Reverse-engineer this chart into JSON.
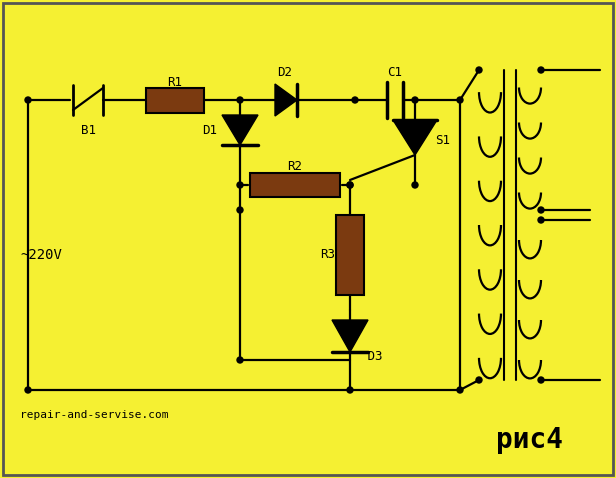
{
  "background_color": "#f5f032",
  "border_color": "#555555",
  "line_color": "#000000",
  "component_fill": "#7B3A10",
  "diode_fill": "#000000",
  "text_color": "#000000",
  "title": "рис4",
  "subtitle": "repair-and-servise.com",
  "voltage_label": "~220V",
  "figsize": [
    6.16,
    4.78
  ],
  "dpi": 100
}
